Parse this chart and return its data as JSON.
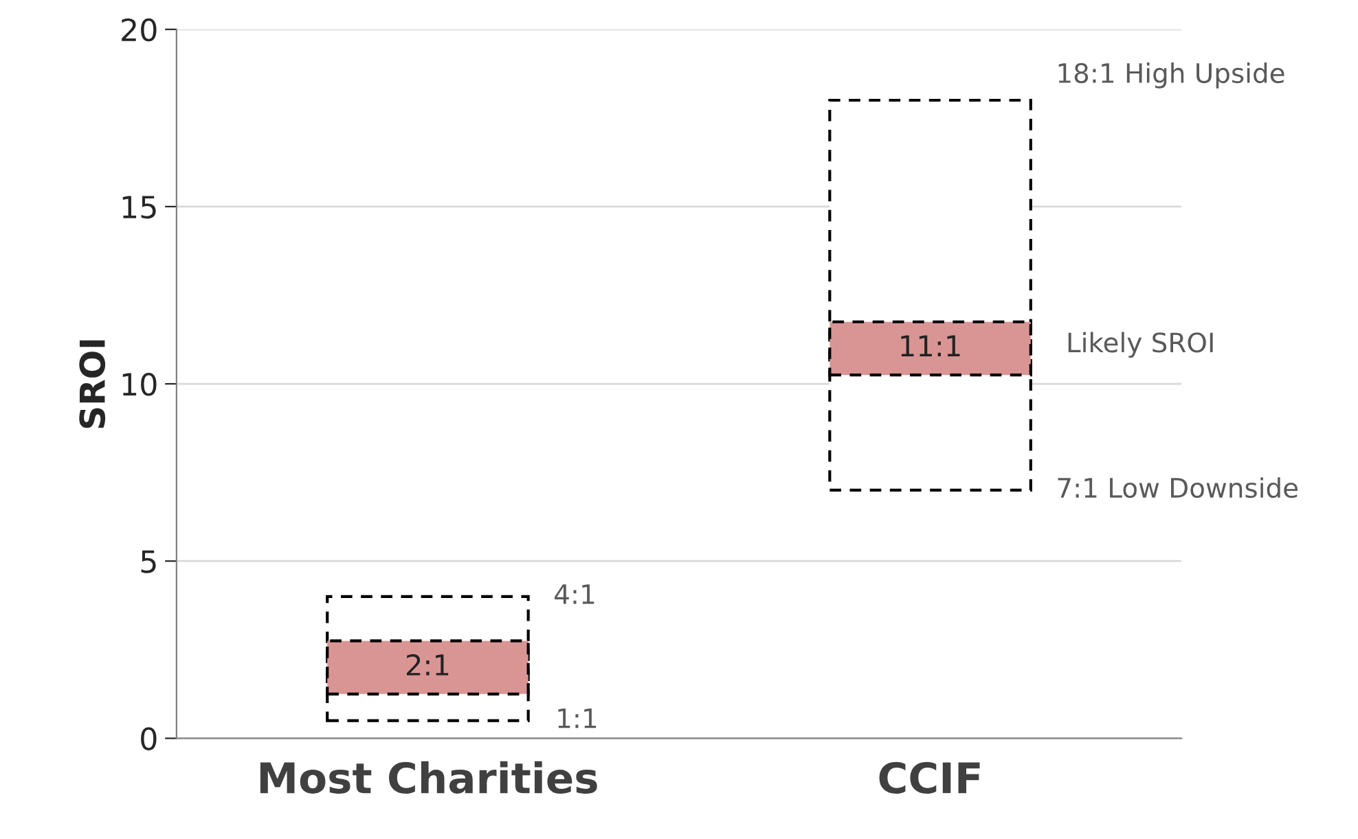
{
  "chart_data": {
    "type": "bar",
    "ylabel": "SROI",
    "categories": [
      "Most Charities",
      "CCIF"
    ],
    "series": [
      {
        "color": "#ffffff",
        "base": [
          0.5,
          7
        ],
        "values": [
          3.5,
          11
        ],
        "line_style": "dashed"
      },
      {
        "color": "#d99594",
        "base": [
          1.25,
          10.25
        ],
        "values": [
          1.5,
          1.5
        ],
        "value_labels": [
          "2:1",
          "11:1"
        ],
        "line_style": "dashed"
      }
    ],
    "ylim": [
      0,
      20
    ],
    "yticks": [
      0,
      5,
      10,
      15,
      20
    ],
    "grid": "y",
    "legend": false,
    "annotations": [
      "4:1",
      "1:1",
      "18:1 High Upside",
      "Likely SROI",
      "7:1 Low Downside"
    ]
  }
}
